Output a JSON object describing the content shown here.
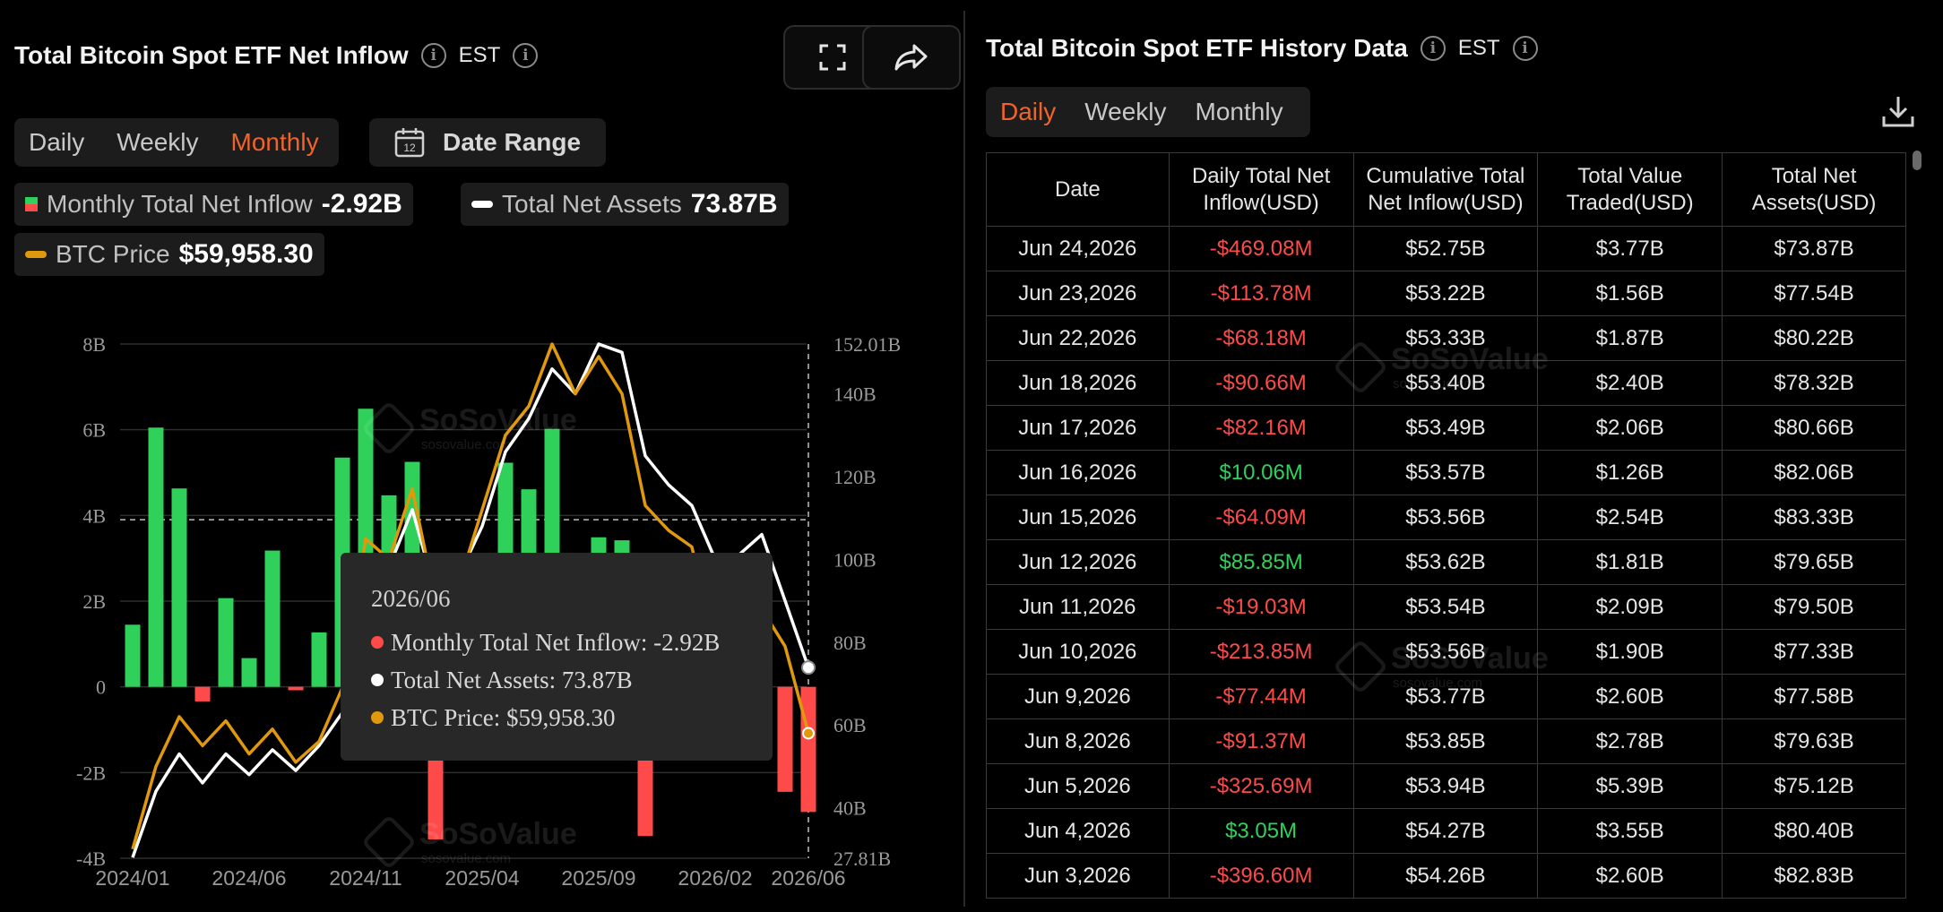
{
  "left": {
    "title": "Total Bitcoin Spot ETF Net Inflow",
    "timezone": "EST",
    "tabs": [
      "Daily",
      "Weekly",
      "Monthly"
    ],
    "active_tab": "Monthly",
    "date_range_label": "Date Range",
    "calendar_day": "12",
    "legend": {
      "net_inflow_label": "Monthly Total Net Inflow",
      "net_inflow_value": "-2.92B",
      "assets_label": "Total Net Assets",
      "assets_value": "73.87B",
      "btc_label": "BTC Price",
      "btc_value": "$59,958.30"
    },
    "tooltip": {
      "date": "2026/06",
      "inflow": "Monthly Total Net Inflow: -2.92B",
      "assets": "Total Net Assets: 73.87B",
      "btc": "BTC Price: $59,958.30"
    },
    "watermark": "SoSoValue",
    "watermark_sub": "sosovalue.com"
  },
  "chart_data": {
    "type": "bar",
    "title": "",
    "left_axis_ticks": [
      "8B",
      "6B",
      "4B",
      "2B",
      "0",
      "-2B",
      "-4B"
    ],
    "right_axis_ticks": [
      "152.01B",
      "140B",
      "120B",
      "100B",
      "80B",
      "60B",
      "40B",
      "27.81B"
    ],
    "x_ticks": [
      "2024/01",
      "2024/06",
      "2024/11",
      "2025/04",
      "2025/09",
      "2026/02",
      "2026/06"
    ],
    "left_ylim": [
      -4,
      8
    ],
    "right_ylim": [
      27.81,
      152.01
    ],
    "categories": [
      "2024/01",
      "2024/02",
      "2024/03",
      "2024/04",
      "2024/05",
      "2024/06",
      "2024/07",
      "2024/08",
      "2024/09",
      "2024/10",
      "2024/11",
      "2024/12",
      "2025/01",
      "2025/02",
      "2025/03",
      "2025/04",
      "2025/05",
      "2025/06",
      "2025/07",
      "2025/08",
      "2025/09",
      "2025/10",
      "2025/11",
      "2025/12",
      "2026/01",
      "2026/02",
      "2026/03",
      "2026/04",
      "2026/05",
      "2026/06"
    ],
    "series": [
      {
        "name": "Monthly Total Net Inflow",
        "color_pos": "#2fd15a",
        "color_neg": "#ff4a4a",
        "values": [
          1.45,
          6.05,
          4.63,
          -0.34,
          2.07,
          0.67,
          3.18,
          -0.08,
          1.27,
          5.35,
          6.49,
          4.47,
          5.25,
          -3.56,
          -0.77,
          2.97,
          5.23,
          4.61,
          6.02,
          -0.75,
          3.49,
          3.42,
          -3.48,
          -1.09,
          -1.61,
          -1.2,
          1.32,
          1.05,
          -2.45,
          -2.92
        ]
      },
      {
        "name": "Total Net Assets",
        "color": "#ffffff",
        "values": [
          28.0,
          44.0,
          53.0,
          46.0,
          53.0,
          48.0,
          54.0,
          49.0,
          55.0,
          63.0,
          98.0,
          98.0,
          112.0,
          92.0,
          96.0,
          108.0,
          126.0,
          134.0,
          146.0,
          140.0,
          152.0,
          150.0,
          125.0,
          118.0,
          113.0,
          100.0,
          101.0,
          106.0,
          90.0,
          73.87
        ]
      },
      {
        "name": "BTC Price",
        "color": "#e0980c",
        "values": [
          30.0,
          50.0,
          62.0,
          55.0,
          61.0,
          53.0,
          59.0,
          51.0,
          56.0,
          69.0,
          105.0,
          100.0,
          117.0,
          90.0,
          94.0,
          112.0,
          130.0,
          137.0,
          152.0,
          140.0,
          149.0,
          140.0,
          113.0,
          107.0,
          103.0,
          78.0,
          80.0,
          88.0,
          79.0,
          58.0
        ]
      }
    ]
  },
  "right": {
    "title": "Total Bitcoin Spot ETF History Data",
    "timezone": "EST",
    "tabs": [
      "Daily",
      "Weekly",
      "Monthly"
    ],
    "active_tab": "Daily",
    "columns": [
      "Date",
      "Daily Total Net Inflow(USD)",
      "Cumulative Total Net Inflow(USD)",
      "Total Value Traded(USD)",
      "Total Net Assets(USD)"
    ],
    "rows": [
      {
        "date": "Jun 24,2026",
        "inflow": "-$469.08M",
        "cum": "$52.75B",
        "traded": "$3.77B",
        "assets": "$73.87B"
      },
      {
        "date": "Jun 23,2026",
        "inflow": "-$113.78M",
        "cum": "$53.22B",
        "traded": "$1.56B",
        "assets": "$77.54B"
      },
      {
        "date": "Jun 22,2026",
        "inflow": "-$68.18M",
        "cum": "$53.33B",
        "traded": "$1.87B",
        "assets": "$80.22B"
      },
      {
        "date": "Jun 18,2026",
        "inflow": "-$90.66M",
        "cum": "$53.40B",
        "traded": "$2.40B",
        "assets": "$78.32B"
      },
      {
        "date": "Jun 17,2026",
        "inflow": "-$82.16M",
        "cum": "$53.49B",
        "traded": "$2.06B",
        "assets": "$80.66B"
      },
      {
        "date": "Jun 16,2026",
        "inflow": "$10.06M",
        "cum": "$53.57B",
        "traded": "$1.26B",
        "assets": "$82.06B"
      },
      {
        "date": "Jun 15,2026",
        "inflow": "-$64.09M",
        "cum": "$53.56B",
        "traded": "$2.54B",
        "assets": "$83.33B"
      },
      {
        "date": "Jun 12,2026",
        "inflow": "$85.85M",
        "cum": "$53.62B",
        "traded": "$1.81B",
        "assets": "$79.65B"
      },
      {
        "date": "Jun 11,2026",
        "inflow": "-$19.03M",
        "cum": "$53.54B",
        "traded": "$2.09B",
        "assets": "$79.50B"
      },
      {
        "date": "Jun 10,2026",
        "inflow": "-$213.85M",
        "cum": "$53.56B",
        "traded": "$1.90B",
        "assets": "$77.33B"
      },
      {
        "date": "Jun 9,2026",
        "inflow": "-$77.44M",
        "cum": "$53.77B",
        "traded": "$2.60B",
        "assets": "$77.58B"
      },
      {
        "date": "Jun 8,2026",
        "inflow": "-$91.37M",
        "cum": "$53.85B",
        "traded": "$2.78B",
        "assets": "$79.63B"
      },
      {
        "date": "Jun 5,2026",
        "inflow": "-$325.69M",
        "cum": "$53.94B",
        "traded": "$5.39B",
        "assets": "$75.12B"
      },
      {
        "date": "Jun 4,2026",
        "inflow": "$3.05M",
        "cum": "$54.27B",
        "traded": "$3.55B",
        "assets": "$80.40B"
      },
      {
        "date": "Jun 3,2026",
        "inflow": "-$396.60M",
        "cum": "$54.26B",
        "traded": "$2.60B",
        "assets": "$82.83B"
      }
    ]
  }
}
